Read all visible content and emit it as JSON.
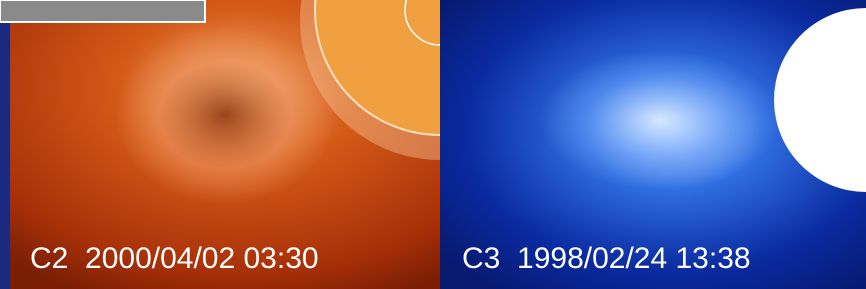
{
  "panels": [
    {
      "caption": "C2  2000/04/02 03:30"
    },
    {
      "caption": "C3  1998/02/24 13:38"
    }
  ]
}
